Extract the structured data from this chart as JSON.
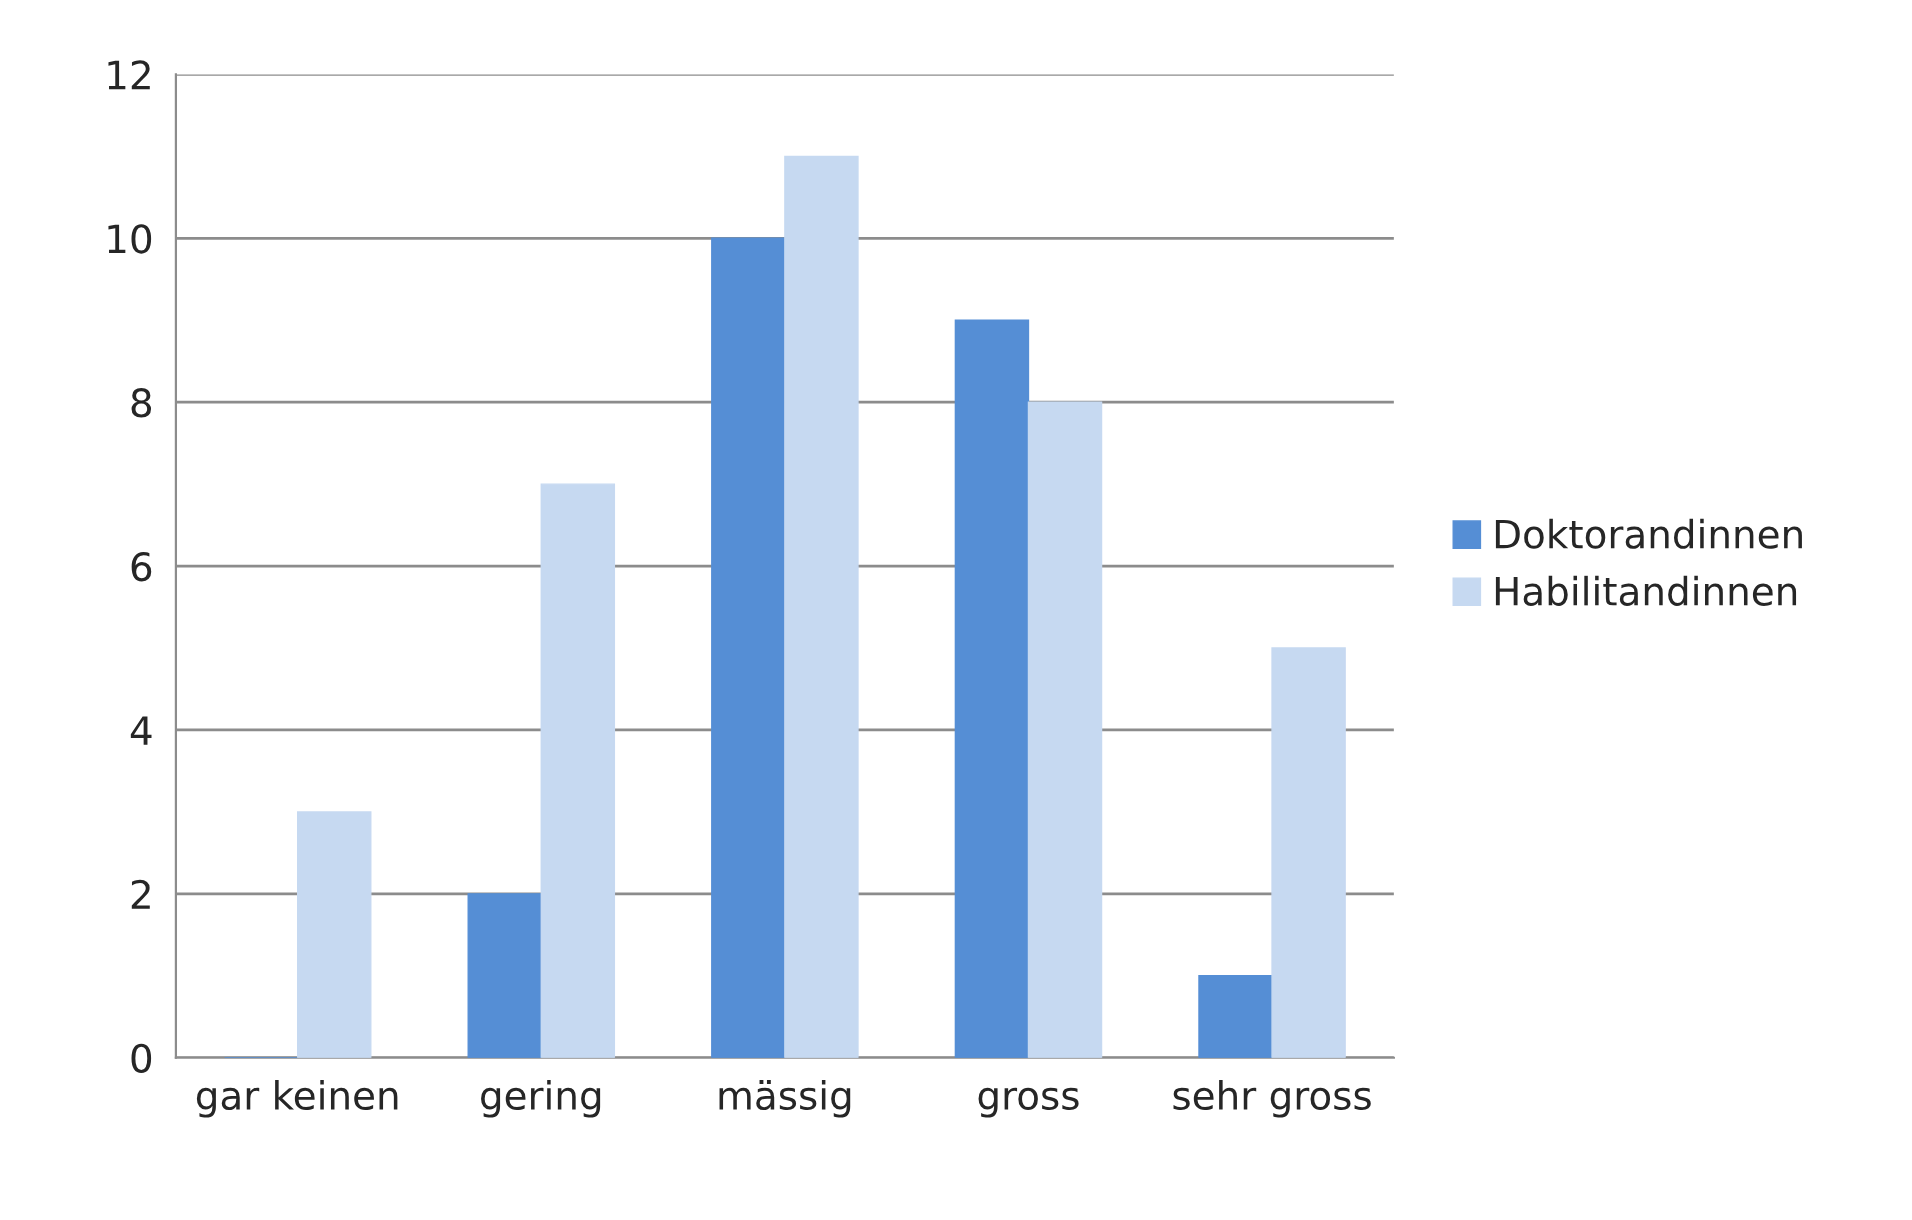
{
  "chart_data": {
    "type": "bar",
    "categories": [
      "gar keinen",
      "gering",
      "mässig",
      "gross",
      "sehr gross"
    ],
    "series": [
      {
        "name": "Doktorandinnen",
        "color": "#558ed5",
        "values": [
          0,
          2,
          10,
          9,
          1
        ]
      },
      {
        "name": "Habilitandinnen",
        "color": "#c6d9f1",
        "values": [
          3,
          7,
          11,
          8,
          5
        ]
      }
    ],
    "ylim": [
      0,
      12
    ],
    "yticks": [
      0,
      2,
      4,
      6,
      8,
      10,
      12
    ],
    "grid": "y",
    "legend": "right"
  }
}
